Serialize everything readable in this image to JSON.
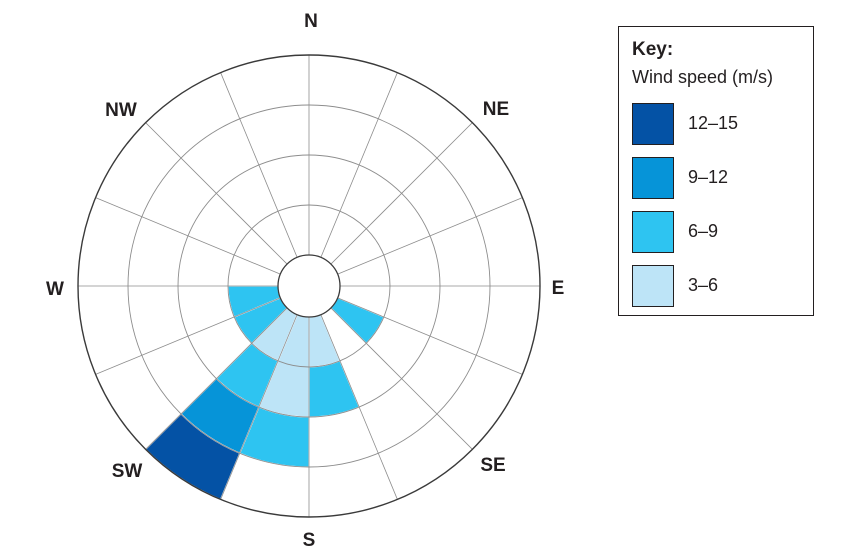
{
  "chart_data": {
    "type": "wind-rose",
    "directions": [
      "N",
      "NE",
      "E",
      "SE",
      "S",
      "SW",
      "W",
      "NW"
    ],
    "sector_count": 16,
    "key_title": "Key:",
    "key_subtitle": "Wind speed (m/s)",
    "bands": [
      {
        "label": "12–15",
        "color": "#0452a5"
      },
      {
        "label": "9–12",
        "color": "#0694d8"
      },
      {
        "label": "6–9",
        "color": "#2ec4f1"
      },
      {
        "label": "3–6",
        "color": "#bde4f7"
      }
    ],
    "speed_rings": [
      3,
      6,
      9,
      12,
      15
    ],
    "sectors": [
      {
        "sector": 5,
        "bands": [
          {
            "band": "6–9",
            "from": 3,
            "to": 6
          }
        ]
      },
      {
        "sector": 7,
        "bands": [
          {
            "band": "3–6",
            "from": 3,
            "to": 6
          },
          {
            "band": "6–9",
            "from": 6,
            "to": 9
          }
        ]
      },
      {
        "sector": 8,
        "bands": [
          {
            "band": "3–6",
            "from": 3,
            "to": 9
          },
          {
            "band": "6–9",
            "from": 9,
            "to": 12
          }
        ]
      },
      {
        "sector": 9,
        "bands": [
          {
            "band": "3–6",
            "from": 3,
            "to": 6
          },
          {
            "band": "6–9",
            "from": 6,
            "to": 9
          },
          {
            "band": "9–12",
            "from": 9,
            "to": 12
          },
          {
            "band": "12–15",
            "from": 12,
            "to": 15
          }
        ]
      },
      {
        "sector": 10,
        "bands": [
          {
            "band": "6–9",
            "from": 3,
            "to": 6
          }
        ]
      },
      {
        "sector": 11,
        "bands": [
          {
            "band": "6–9",
            "from": 3,
            "to": 6
          }
        ]
      }
    ]
  }
}
